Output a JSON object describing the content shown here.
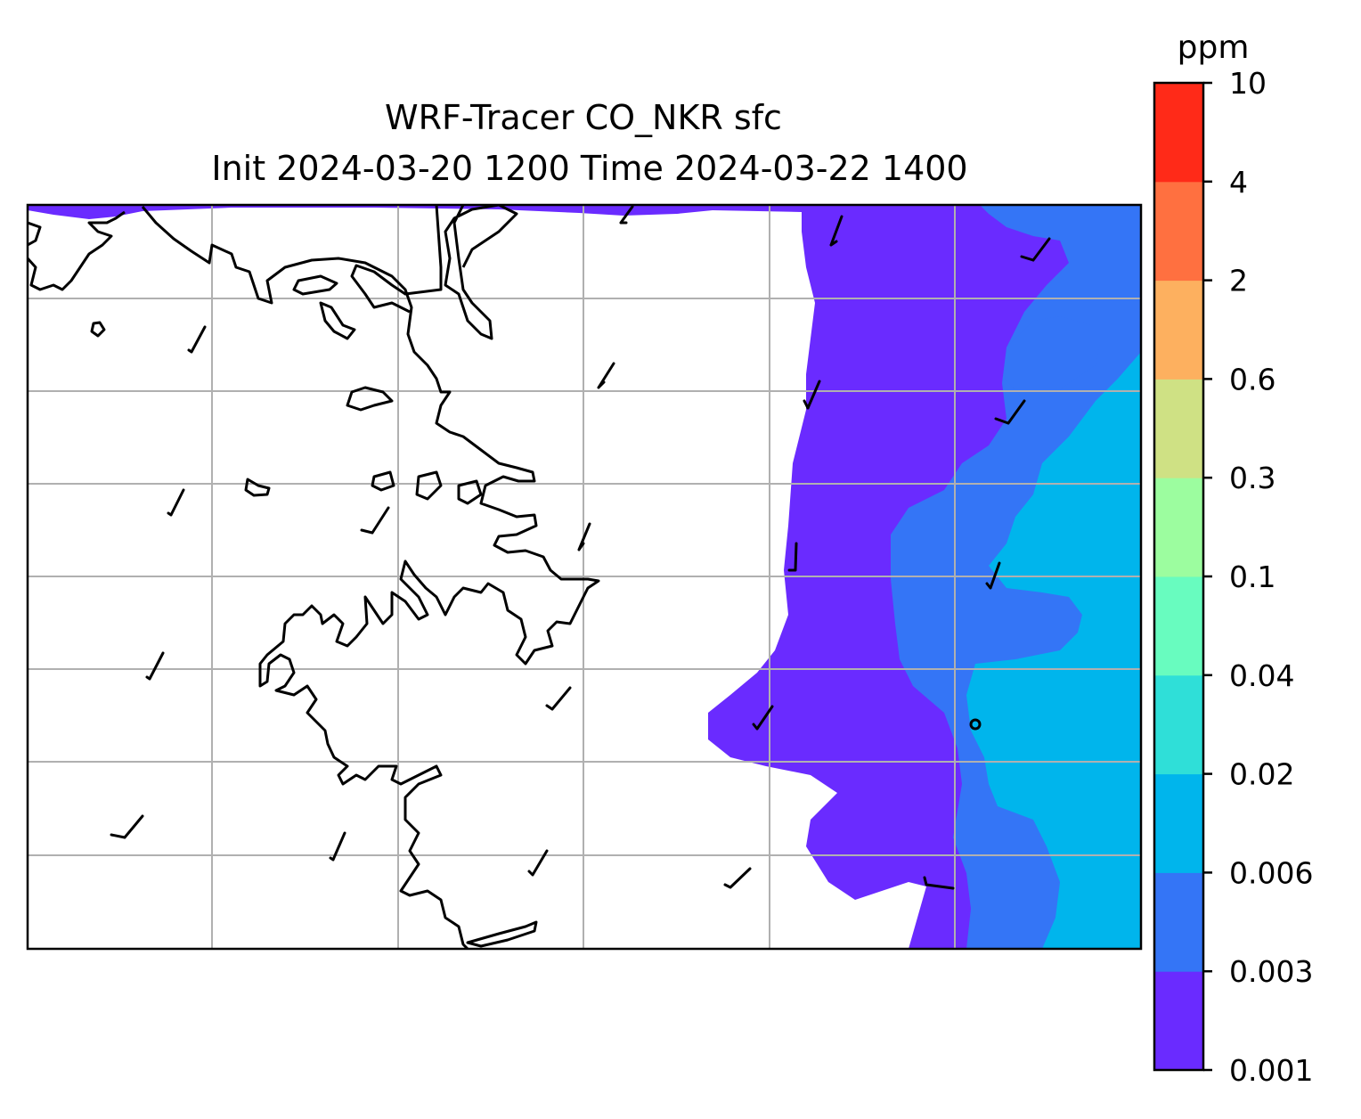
{
  "title": {
    "line1": "WRF-Tracer CO_NKR sfc",
    "line2": "Init 2024-03-20 1200 Time 2024-03-22 1400"
  },
  "colorbar": {
    "unit": "ppm",
    "levels": [
      "0.001",
      "0.003",
      "0.006",
      "0.02",
      "0.04",
      "0.1",
      "0.3",
      "0.6",
      "2",
      "4",
      "10"
    ],
    "colors": [
      "#6a2bff",
      "#3475f6",
      "#00b5ec",
      "#2fdfd8",
      "#68fcbf",
      "#9cfd9f",
      "#cfe184",
      "#fdb05f",
      "#ff7040",
      "#ff2a18"
    ]
  },
  "map": {
    "background": "#ffffff",
    "coastline_color": "#000000",
    "gridline_color": "#b0b0b0",
    "wind_barbs_shown": true,
    "gridlines_shown": true
  }
}
